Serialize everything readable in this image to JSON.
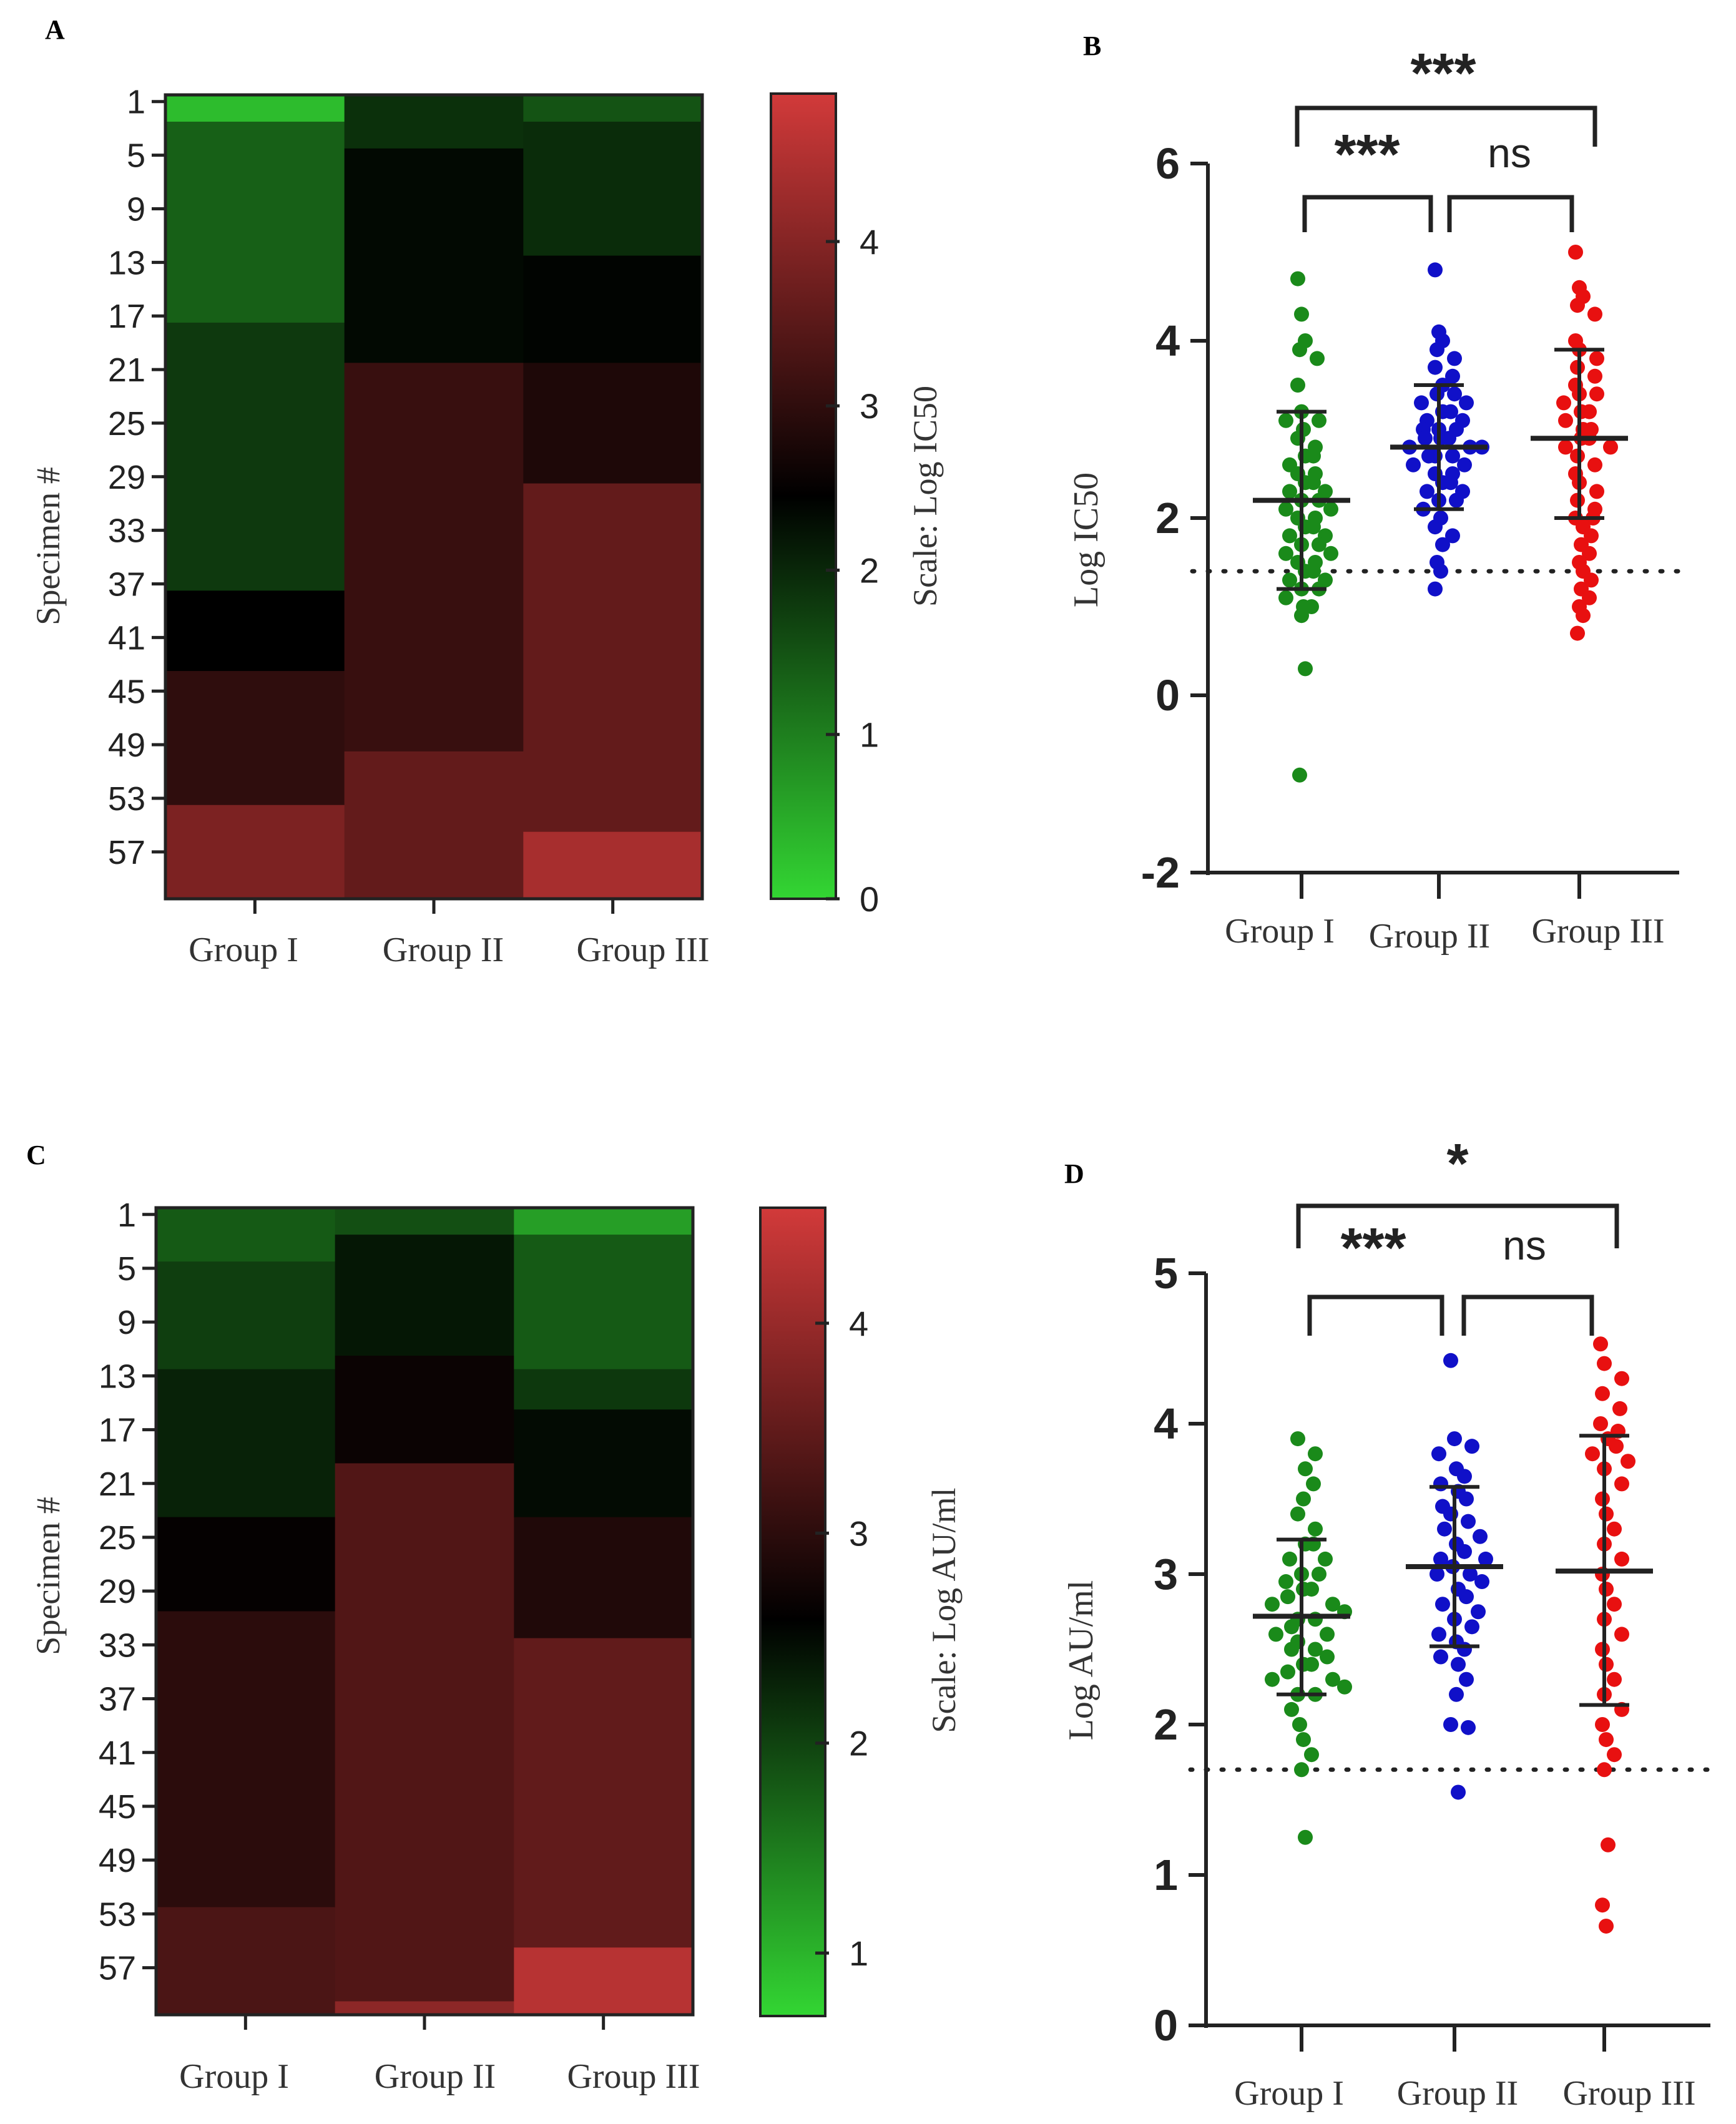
{
  "colors": {
    "green": "#1a8a1a",
    "blue": "#1010c8",
    "red": "#e81010",
    "axis": "#222222",
    "low": "#33d633",
    "mid": "#000000",
    "high": "#d23a3a"
  },
  "chart_data": [
    {
      "panel": "A",
      "type": "heatmap",
      "categories": [
        "Group I",
        "Group II",
        "Group III"
      ],
      "ylabel": "Specimen #",
      "yticks": [
        "1",
        "5",
        "9",
        "13",
        "17",
        "21",
        "25",
        "29",
        "33",
        "37",
        "41",
        "45",
        "49",
        "53",
        "57"
      ],
      "n_rows": 60,
      "colorbar": {
        "label": "Scale: Log IC50",
        "min": 0,
        "max": 4.9,
        "mid": 2.45,
        "ticks": [
          "0",
          "1",
          "2",
          "3",
          "4"
        ]
      },
      "segments": [
        [
          [
            0,
            2,
            0.3
          ],
          [
            2,
            17,
            1.35
          ],
          [
            17,
            37,
            1.8
          ],
          [
            37,
            43,
            2.45
          ],
          [
            43,
            53,
            3.0
          ],
          [
            53,
            60,
            3.9
          ]
        ],
        [
          [
            0,
            4,
            1.9
          ],
          [
            4,
            20,
            2.35
          ],
          [
            20,
            49,
            3.1
          ],
          [
            49,
            60,
            3.6
          ]
        ],
        [
          [
            0,
            2,
            1.5
          ],
          [
            2,
            12,
            1.95
          ],
          [
            12,
            20,
            2.4
          ],
          [
            20,
            29,
            2.8
          ],
          [
            29,
            55,
            3.6
          ],
          [
            55,
            60,
            4.4
          ]
        ]
      ]
    },
    {
      "panel": "B",
      "type": "scatter",
      "categories": [
        "Group I",
        "Group II",
        "Group III"
      ],
      "ylabel": "Log IC50",
      "ylim": [
        -2,
        6
      ],
      "yticks": [
        -2,
        0,
        2,
        4,
        6
      ],
      "reference_line": 1.4,
      "series": [
        {
          "name": "Group I",
          "mean": 2.2,
          "sd_low": 1.2,
          "sd_high": 3.2,
          "values": [
            4.7,
            4.3,
            4.0,
            3.9,
            3.8,
            3.5,
            3.2,
            3.1,
            3.1,
            3.0,
            2.9,
            2.8,
            2.7,
            2.7,
            2.6,
            2.5,
            2.5,
            2.4,
            2.4,
            2.3,
            2.3,
            2.2,
            2.2,
            2.1,
            2.1,
            2.0,
            2.0,
            1.9,
            1.9,
            1.8,
            1.8,
            1.7,
            1.7,
            1.6,
            1.6,
            1.5,
            1.5,
            1.4,
            1.4,
            1.3,
            1.3,
            1.2,
            1.2,
            1.1,
            1.0,
            1.0,
            0.9,
            0.3,
            -0.9
          ]
        },
        {
          "name": "Group II",
          "mean": 2.8,
          "sd_low": 2.1,
          "sd_high": 3.5,
          "values": [
            4.8,
            4.1,
            4.0,
            3.9,
            3.8,
            3.7,
            3.6,
            3.5,
            3.4,
            3.4,
            3.3,
            3.3,
            3.2,
            3.2,
            3.1,
            3.1,
            3.0,
            3.0,
            3.0,
            2.9,
            2.9,
            2.9,
            2.8,
            2.8,
            2.8,
            2.7,
            2.7,
            2.7,
            2.6,
            2.6,
            2.5,
            2.5,
            2.4,
            2.4,
            2.3,
            2.3,
            2.2,
            2.2,
            2.1,
            2.0,
            1.9,
            1.8,
            1.7,
            1.5,
            1.4,
            1.2
          ]
        },
        {
          "name": "Group III",
          "mean": 2.9,
          "sd_low": 2.0,
          "sd_high": 3.9,
          "values": [
            5.0,
            4.6,
            4.5,
            4.4,
            4.3,
            4.0,
            3.9,
            3.8,
            3.7,
            3.6,
            3.5,
            3.4,
            3.4,
            3.3,
            3.2,
            3.2,
            3.1,
            3.0,
            3.0,
            2.9,
            2.9,
            2.8,
            2.8,
            2.7,
            2.6,
            2.5,
            2.4,
            2.3,
            2.2,
            2.1,
            2.0,
            2.0,
            1.9,
            1.8,
            1.7,
            1.6,
            1.5,
            1.4,
            1.3,
            1.2,
            1.1,
            1.0,
            0.9,
            0.7
          ]
        }
      ],
      "comparisons": [
        {
          "from": 0,
          "to": 2,
          "label": "***"
        },
        {
          "from": 0,
          "to": 1,
          "label": "***"
        },
        {
          "from": 1,
          "to": 2,
          "label": "ns"
        }
      ]
    },
    {
      "panel": "C",
      "type": "heatmap",
      "categories": [
        "Group I",
        "Group II",
        "Group III"
      ],
      "ylabel": "Specimen #",
      "yticks": [
        "1",
        "5",
        "9",
        "13",
        "17",
        "21",
        "25",
        "29",
        "33",
        "37",
        "41",
        "45",
        "49",
        "53",
        "57"
      ],
      "n_rows": 60,
      "colorbar": {
        "label": "Scale: Log AU/ml",
        "min": 0.7,
        "max": 4.55,
        "mid": 2.6,
        "ticks": [
          "1",
          "2",
          "3",
          "4"
        ]
      },
      "segments": [
        [
          [
            0,
            4,
            1.8
          ],
          [
            4,
            12,
            2.05
          ],
          [
            12,
            23,
            2.3
          ],
          [
            23,
            30,
            2.65
          ],
          [
            30,
            52,
            3.0
          ],
          [
            52,
            60,
            3.3
          ]
        ],
        [
          [
            0,
            2,
            1.9
          ],
          [
            2,
            11,
            2.4
          ],
          [
            11,
            19,
            2.7
          ],
          [
            19,
            59,
            3.35
          ],
          [
            59,
            60,
            3.9
          ]
        ],
        [
          [
            0,
            2,
            1.2
          ],
          [
            2,
            12,
            1.8
          ],
          [
            12,
            15,
            2.1
          ],
          [
            15,
            23,
            2.5
          ],
          [
            23,
            32,
            2.9
          ],
          [
            32,
            55,
            3.5
          ],
          [
            55,
            60,
            4.3
          ]
        ]
      ]
    },
    {
      "panel": "D",
      "type": "scatter",
      "categories": [
        "Group I",
        "Group II",
        "Group III"
      ],
      "ylabel": "Log AU/ml",
      "ylim": [
        0,
        5
      ],
      "yticks": [
        0,
        1,
        2,
        3,
        4,
        5
      ],
      "reference_line": 1.7,
      "series": [
        {
          "name": "Group I",
          "mean": 2.72,
          "sd_low": 2.2,
          "sd_high": 3.23,
          "values": [
            3.9,
            3.8,
            3.7,
            3.6,
            3.5,
            3.4,
            3.3,
            3.2,
            3.2,
            3.1,
            3.1,
            3.0,
            3.0,
            2.95,
            2.9,
            2.9,
            2.85,
            2.8,
            2.8,
            2.75,
            2.7,
            2.7,
            2.65,
            2.6,
            2.6,
            2.55,
            2.5,
            2.5,
            2.45,
            2.4,
            2.4,
            2.35,
            2.3,
            2.3,
            2.25,
            2.2,
            2.2,
            2.1,
            2.0,
            1.9,
            1.8,
            1.7,
            1.25
          ]
        },
        {
          "name": "Group II",
          "mean": 3.05,
          "sd_low": 2.52,
          "sd_high": 3.58,
          "values": [
            4.42,
            3.9,
            3.85,
            3.8,
            3.7,
            3.65,
            3.6,
            3.55,
            3.5,
            3.45,
            3.4,
            3.35,
            3.3,
            3.25,
            3.2,
            3.15,
            3.1,
            3.1,
            3.05,
            3.0,
            3.0,
            2.95,
            2.9,
            2.85,
            2.8,
            2.75,
            2.7,
            2.65,
            2.6,
            2.55,
            2.5,
            2.45,
            2.4,
            2.3,
            2.2,
            2.0,
            1.98,
            1.55
          ]
        },
        {
          "name": "Group III",
          "mean": 3.02,
          "sd_low": 2.13,
          "sd_high": 3.92,
          "values": [
            4.53,
            4.4,
            4.3,
            4.2,
            4.1,
            4.0,
            3.95,
            3.9,
            3.85,
            3.8,
            3.75,
            3.7,
            3.6,
            3.5,
            3.4,
            3.3,
            3.2,
            3.1,
            3.0,
            2.9,
            2.8,
            2.7,
            2.6,
            2.5,
            2.4,
            2.3,
            2.2,
            2.1,
            2.0,
            1.9,
            1.8,
            1.7,
            1.2,
            0.8,
            0.66
          ]
        }
      ],
      "comparisons": [
        {
          "from": 0,
          "to": 2,
          "label": "*"
        },
        {
          "from": 0,
          "to": 1,
          "label": "***"
        },
        {
          "from": 1,
          "to": 2,
          "label": "ns"
        }
      ]
    }
  ]
}
